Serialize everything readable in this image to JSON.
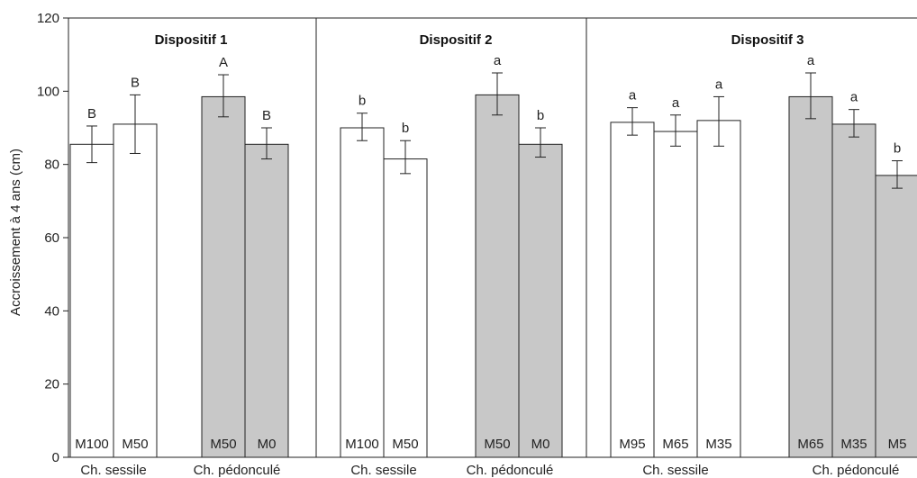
{
  "chart_data": {
    "type": "bar",
    "ylabel": "Accroissement à 4 ans (cm)",
    "ylim": [
      0,
      120
    ],
    "yticks": [
      0,
      20,
      40,
      60,
      80,
      100,
      120
    ],
    "colors": {
      "sessile": "#ffffff",
      "pedoncule": "#c8c8c8",
      "stroke": "#222222"
    },
    "panels": [
      {
        "title": "Dispositif 1",
        "groups": [
          {
            "name": "Ch. sessile",
            "species": "sessile",
            "bars": [
              {
                "label": "M100",
                "value": 85.5,
                "err_low": 80.5,
                "err_high": 90.5,
                "sig": "B"
              },
              {
                "label": "M50",
                "value": 91,
                "err_low": 83,
                "err_high": 99,
                "sig": "B"
              }
            ]
          },
          {
            "name": "Ch. pédonculé",
            "species": "pedoncule",
            "bars": [
              {
                "label": "M50",
                "value": 98.5,
                "err_low": 93,
                "err_high": 104.5,
                "sig": "A"
              },
              {
                "label": "M0",
                "value": 85.5,
                "err_low": 81.5,
                "err_high": 90,
                "sig": "B"
              }
            ]
          }
        ]
      },
      {
        "title": "Dispositif 2",
        "groups": [
          {
            "name": "Ch. sessile",
            "species": "sessile",
            "bars": [
              {
                "label": "M100",
                "value": 90,
                "err_low": 86.5,
                "err_high": 94,
                "sig": "b"
              },
              {
                "label": "M50",
                "value": 81.5,
                "err_low": 77.5,
                "err_high": 86.5,
                "sig": "b"
              }
            ]
          },
          {
            "name": "Ch. pédonculé",
            "species": "pedoncule",
            "bars": [
              {
                "label": "M50",
                "value": 99,
                "err_low": 93.5,
                "err_high": 105,
                "sig": "a"
              },
              {
                "label": "M0",
                "value": 85.5,
                "err_low": 82,
                "err_high": 90,
                "sig": "b"
              }
            ]
          }
        ]
      },
      {
        "title": "Dispositif 3",
        "groups": [
          {
            "name": "Ch. sessile",
            "species": "sessile",
            "bars": [
              {
                "label": "M95",
                "value": 91.5,
                "err_low": 88,
                "err_high": 95.5,
                "sig": "a"
              },
              {
                "label": "M65",
                "value": 89,
                "err_low": 85,
                "err_high": 93.5,
                "sig": "a"
              },
              {
                "label": "M35",
                "value": 92,
                "err_low": 85,
                "err_high": 98.5,
                "sig": "a"
              }
            ]
          },
          {
            "name": "Ch. pédonculé",
            "species": "pedoncule",
            "bars": [
              {
                "label": "M65",
                "value": 98.5,
                "err_low": 92.5,
                "err_high": 105,
                "sig": "a"
              },
              {
                "label": "M35",
                "value": 91,
                "err_low": 87.5,
                "err_high": 95,
                "sig": "a"
              },
              {
                "label": "M5",
                "value": 77,
                "err_low": 73.5,
                "err_high": 81,
                "sig": "b"
              }
            ]
          }
        ]
      }
    ]
  }
}
